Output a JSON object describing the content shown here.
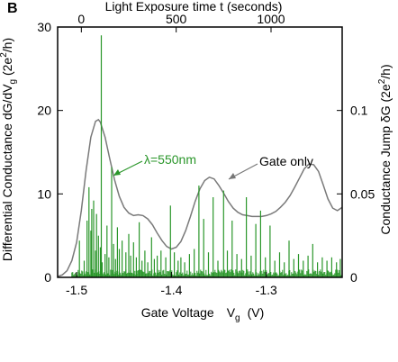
{
  "panel_label": "B",
  "colors": {
    "spikes": "#2a962a",
    "gate_only": "#7a7a7a",
    "axes": "#000000"
  },
  "chart_data": {
    "type": "line",
    "x_axis": {
      "label": "Gate Voltage",
      "symbol": "V",
      "subscript": "g",
      "unit": "(V)",
      "range": [
        -1.52,
        -1.22
      ],
      "ticks": [
        -1.5,
        -1.4,
        -1.3
      ],
      "tick_labels": [
        "-1.5",
        "-1.4",
        "-1.3"
      ]
    },
    "top_axis": {
      "label": "Light Exposure time t  (seconds)",
      "range": [
        -125,
        1375
      ],
      "ticks": [
        0,
        500,
        1000
      ],
      "tick_labels": [
        "0",
        "500",
        "1000"
      ]
    },
    "left_axis": {
      "label_prefix": "Differential Conductance  dG/dV",
      "label_sub": "g",
      "label_unit_pre": " (2e",
      "label_unit_sup": "2",
      "label_unit_post": "/h)",
      "range": [
        0,
        30
      ],
      "ticks": [
        0,
        10,
        20,
        30
      ],
      "tick_labels": [
        "0",
        "10",
        "20",
        "30"
      ]
    },
    "right_axis": {
      "label_prefix": "Conductance Jump  δG  (2e",
      "label_sup": "2",
      "label_post": "/h)",
      "range": [
        0,
        0.15
      ],
      "ticks": [
        0,
        0.05,
        0.1
      ],
      "tick_labels": [
        "0",
        "0.05",
        "0.1"
      ]
    },
    "series": [
      {
        "name": "Gate only",
        "axis": "left",
        "x": [
          -1.52,
          -1.515,
          -1.51,
          -1.505,
          -1.5,
          -1.495,
          -1.49,
          -1.485,
          -1.48,
          -1.477,
          -1.475,
          -1.47,
          -1.465,
          -1.46,
          -1.455,
          -1.45,
          -1.445,
          -1.44,
          -1.435,
          -1.43,
          -1.425,
          -1.42,
          -1.415,
          -1.41,
          -1.405,
          -1.4,
          -1.395,
          -1.39,
          -1.385,
          -1.38,
          -1.375,
          -1.37,
          -1.365,
          -1.36,
          -1.355,
          -1.35,
          -1.345,
          -1.34,
          -1.335,
          -1.33,
          -1.325,
          -1.32,
          -1.315,
          -1.31,
          -1.305,
          -1.3,
          -1.295,
          -1.29,
          -1.285,
          -1.28,
          -1.275,
          -1.27,
          -1.265,
          -1.26,
          -1.255,
          -1.25,
          -1.245,
          -1.24,
          -1.235,
          -1.23,
          -1.225,
          -1.22
        ],
        "y": [
          0.1,
          0.3,
          0.8,
          2.0,
          4.2,
          8.0,
          12.8,
          16.8,
          18.7,
          18.9,
          18.6,
          16.8,
          14.2,
          11.7,
          9.7,
          8.4,
          7.7,
          7.4,
          7.5,
          7.4,
          7.0,
          6.3,
          5.3,
          4.4,
          3.7,
          3.4,
          3.6,
          4.3,
          5.6,
          7.3,
          9.1,
          10.6,
          11.6,
          12.0,
          11.8,
          11.0,
          10.1,
          9.1,
          8.3,
          7.8,
          7.5,
          7.4,
          7.3,
          7.3,
          7.3,
          7.4,
          7.6,
          7.9,
          8.4,
          9.0,
          9.8,
          10.8,
          11.9,
          13.0,
          13.6,
          13.5,
          12.7,
          11.1,
          9.4,
          8.3,
          8.0,
          8.4
        ]
      },
      {
        "name": "λ=550nm",
        "axis": "right",
        "x": [
          -1.497,
          -1.492,
          -1.489,
          -1.487,
          -1.485,
          -1.484,
          -1.482,
          -1.48,
          -1.479,
          -1.477,
          -1.475,
          -1.474,
          -1.473,
          -1.47,
          -1.468,
          -1.466,
          -1.463,
          -1.461,
          -1.459,
          -1.457,
          -1.455,
          -1.452,
          -1.448,
          -1.445,
          -1.443,
          -1.44,
          -1.437,
          -1.434,
          -1.431,
          -1.428,
          -1.425,
          -1.421,
          -1.418,
          -1.415,
          -1.411,
          -1.406,
          -1.401,
          -1.397,
          -1.393,
          -1.39,
          -1.386,
          -1.381,
          -1.376,
          -1.371,
          -1.366,
          -1.361,
          -1.356,
          -1.351,
          -1.345,
          -1.341,
          -1.336,
          -1.331,
          -1.326,
          -1.321,
          -1.316,
          -1.311,
          -1.306,
          -1.301,
          -1.296,
          -1.291,
          -1.286,
          -1.281,
          -1.276,
          -1.271,
          -1.266,
          -1.261,
          -1.256,
          -1.251,
          -1.246,
          -1.241,
          -1.236,
          -1.231,
          -1.226,
          -1.222
        ],
        "y": [
          0.022,
          0.01,
          0.034,
          0.054,
          0.028,
          0.041,
          0.046,
          0.016,
          0.038,
          0.025,
          0.018,
          0.145,
          0.009,
          0.014,
          0.031,
          0.012,
          0.066,
          0.02,
          0.011,
          0.03,
          0.017,
          0.022,
          0.015,
          0.026,
          0.013,
          0.021,
          0.012,
          0.033,
          0.01,
          0.016,
          0.009,
          0.024,
          0.011,
          0.013,
          0.016,
          0.012,
          0.043,
          0.015,
          0.01,
          0.012,
          0.009,
          0.014,
          0.017,
          0.055,
          0.035,
          0.015,
          0.048,
          0.01,
          0.052,
          0.016,
          0.034,
          0.014,
          0.011,
          0.048,
          0.013,
          0.032,
          0.04,
          0.012,
          0.031,
          0.01,
          0.015,
          0.009,
          0.022,
          0.011,
          0.014,
          0.01,
          0.013,
          0.02,
          0.009,
          0.012,
          0.01,
          0.012,
          0.009,
          0.011
        ]
      }
    ],
    "annotations": [
      {
        "text": "λ=550nm",
        "arrow_to": {
          "x": -1.454,
          "y": 13.4
        }
      },
      {
        "text": "Gate only",
        "arrow_to": {
          "x": -1.355,
          "y": 11.7
        }
      }
    ]
  }
}
